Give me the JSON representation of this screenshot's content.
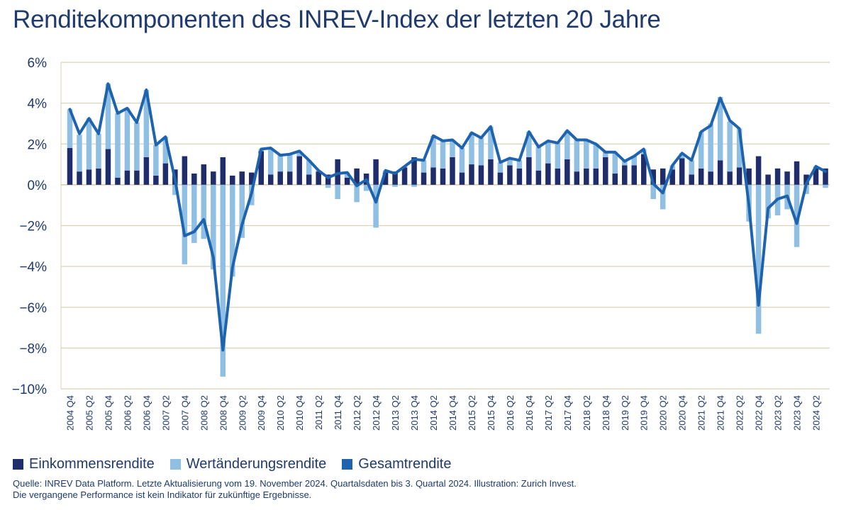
{
  "chart_data": {
    "type": "bar",
    "title": "Renditekomponenten des INREV-Index der letzten 20 Jahre",
    "ylim": [
      -10,
      6
    ],
    "yticks": [
      6,
      4,
      2,
      0,
      -2,
      -4,
      -6,
      -8,
      -10
    ],
    "ytick_labels": [
      "6%",
      "4%",
      "2%",
      "0%",
      "−2%",
      "−4%",
      "−6%",
      "−8%",
      "−10%"
    ],
    "grid": true,
    "legend_position": "bottom-left",
    "categories": [
      "2004 Q4",
      "2005 Q1",
      "2005 Q2",
      "2005 Q3",
      "2005 Q4",
      "2006 Q1",
      "2006 Q2",
      "2006 Q3",
      "2006 Q4",
      "2007 Q1",
      "2007 Q2",
      "2007 Q3",
      "2007 Q4",
      "2008 Q1",
      "2008 Q2",
      "2008 Q3",
      "2008 Q4",
      "2009 Q1",
      "2009 Q2",
      "2009 Q3",
      "2009 Q4",
      "2010 Q1",
      "2010 Q2",
      "2010 Q3",
      "2010 Q4",
      "2011 Q1",
      "2011 Q2",
      "2011 Q3",
      "2011 Q4",
      "2012 Q1",
      "2012 Q2",
      "2012 Q3",
      "2012 Q4",
      "2013 Q1",
      "2013 Q2",
      "2013 Q3",
      "2013 Q4",
      "2014 Q1",
      "2014 Q2",
      "2014 Q3",
      "2014 Q4",
      "2015 Q1",
      "2015 Q2",
      "2015 Q3",
      "2015 Q4",
      "2016 Q1",
      "2016 Q2",
      "2016 Q3",
      "2016 Q4",
      "2017 Q1",
      "2017 Q2",
      "2017 Q3",
      "2017 Q4",
      "2018 Q1",
      "2018 Q2",
      "2018 Q3",
      "2018 Q4",
      "2019 Q1",
      "2019 Q2",
      "2019 Q3",
      "2019 Q4",
      "2020 Q1",
      "2020 Q2",
      "2020 Q3",
      "2020 Q4",
      "2021 Q1",
      "2021 Q2",
      "2021 Q3",
      "2021 Q4",
      "2022 Q1",
      "2022 Q2",
      "2022 Q3",
      "2022 Q4",
      "2023 Q1",
      "2023 Q2",
      "2023 Q3",
      "2023 Q4",
      "2024 Q1",
      "2024 Q2",
      "2024 Q3"
    ],
    "xtick_labels": [
      "2004 Q4",
      "2005 Q2",
      "2005 Q4",
      "2006 Q2",
      "2006 Q4",
      "2007 Q2",
      "2007 Q4",
      "2008 Q2",
      "2008 Q4",
      "2009 Q2",
      "2009 Q4",
      "2010 Q2",
      "2010 Q4",
      "2011 Q2",
      "2011 Q4",
      "2012 Q2",
      "2012 Q4",
      "2013 Q2",
      "2013 Q4",
      "2014 Q2",
      "2014 Q4",
      "2015 Q2",
      "2015 Q4",
      "2016 Q2",
      "2016 Q4",
      "2017 Q2",
      "2017 Q4",
      "2018 Q2",
      "2018 Q4",
      "2019 Q2",
      "2019 Q4",
      "2020 Q2",
      "2020 Q4",
      "2021 Q2",
      "2021 Q4",
      "2022 Q2",
      "2022 Q4",
      "2023 Q2",
      "2023 Q4",
      "2024 Q2"
    ],
    "series": [
      {
        "name": "Einkommensrendite",
        "type": "bar",
        "color": "#1f2d6b",
        "values": [
          1.8,
          0.65,
          0.75,
          0.8,
          1.75,
          0.35,
          0.7,
          0.7,
          1.35,
          0.45,
          1.05,
          0.75,
          1.4,
          0.55,
          1.0,
          0.65,
          1.35,
          0.45,
          0.65,
          0.6,
          1.65,
          0.5,
          0.65,
          0.65,
          1.4,
          0.5,
          0.65,
          0.5,
          1.25,
          0.35,
          0.8,
          0.55,
          1.25,
          0.6,
          0.65,
          0.85,
          1.35,
          0.6,
          0.85,
          0.8,
          1.35,
          0.6,
          1.0,
          0.95,
          1.25,
          0.6,
          0.95,
          0.8,
          1.35,
          0.7,
          1.05,
          0.8,
          1.25,
          0.65,
          0.8,
          0.8,
          1.35,
          0.55,
          0.95,
          0.95,
          1.5,
          0.75,
          0.8,
          0.75,
          1.3,
          0.5,
          0.8,
          0.65,
          1.2,
          0.65,
          0.85,
          0.8,
          1.4,
          0.5,
          0.8,
          0.65,
          1.15,
          0.5,
          0.8,
          0.8
        ]
      },
      {
        "name": "Wertänderungsrendite",
        "type": "bar",
        "color": "#8fbfe3",
        "values": [
          1.9,
          1.8,
          2.5,
          1.7,
          3.2,
          3.15,
          3.05,
          2.35,
          3.3,
          1.5,
          1.3,
          -0.5,
          -3.9,
          -2.85,
          -2.65,
          -4.15,
          -9.4,
          -4.5,
          -2.6,
          -1.0,
          0.1,
          1.3,
          0.8,
          0.85,
          0.25,
          0.7,
          0.05,
          -0.15,
          -0.7,
          0.25,
          -0.85,
          -0.3,
          -2.1,
          0.1,
          -0.1,
          0.05,
          -0.1,
          0.6,
          1.55,
          1.35,
          0.85,
          1.2,
          1.55,
          1.35,
          1.6,
          0.5,
          0.35,
          0.4,
          1.25,
          1.15,
          1.1,
          1.25,
          1.4,
          1.55,
          1.4,
          1.2,
          0.25,
          1.05,
          0.2,
          0.45,
          0.25,
          -0.7,
          -1.2,
          0.2,
          0.25,
          0.7,
          1.8,
          2.35,
          3.1,
          2.45,
          1.9,
          -1.8,
          -7.3,
          -1.65,
          -1.5,
          -1.2,
          -3.05,
          -0.45,
          0.1,
          -0.15
        ]
      },
      {
        "name": "Gesamtrendite",
        "type": "line",
        "color": "#1e63ae",
        "values": [
          3.7,
          2.5,
          3.25,
          2.5,
          4.95,
          3.5,
          3.75,
          3.05,
          4.65,
          1.95,
          2.35,
          0.25,
          -2.5,
          -2.3,
          -1.7,
          -3.55,
          -8.1,
          -4.05,
          -1.95,
          -0.4,
          1.75,
          1.8,
          1.45,
          1.5,
          1.65,
          1.2,
          0.7,
          0.35,
          0.55,
          0.6,
          -0.05,
          0.25,
          -0.85,
          0.7,
          0.55,
          0.9,
          1.25,
          1.2,
          2.4,
          2.15,
          2.2,
          1.8,
          2.55,
          2.3,
          2.85,
          1.1,
          1.3,
          1.2,
          2.6,
          1.85,
          2.15,
          2.05,
          2.65,
          2.2,
          2.2,
          2.0,
          1.6,
          1.6,
          1.15,
          1.4,
          1.75,
          0.05,
          -0.4,
          0.95,
          1.55,
          1.2,
          2.6,
          2.9,
          4.25,
          3.15,
          2.75,
          -1.0,
          -5.9,
          -1.15,
          -0.7,
          -0.55,
          -1.9,
          0.05,
          0.9,
          0.65
        ]
      }
    ],
    "legend": [
      {
        "label": "Einkommensrendite",
        "color": "#1f2d6b"
      },
      {
        "label": "Wertänderungsrendite",
        "color": "#8fbfe3"
      },
      {
        "label": "Gesamtrendite",
        "color": "#1e63ae"
      }
    ]
  },
  "footnote": {
    "line1": "Quelle: INREV Data Platform. Letzte Aktualisierung vom 19. November 2024. Quartalsdaten bis 3. Quartal 2024. Illustration: Zurich Invest.",
    "line2": "Die vergangene Performance ist kein Indikator für zukünftige Ergebnisse."
  }
}
